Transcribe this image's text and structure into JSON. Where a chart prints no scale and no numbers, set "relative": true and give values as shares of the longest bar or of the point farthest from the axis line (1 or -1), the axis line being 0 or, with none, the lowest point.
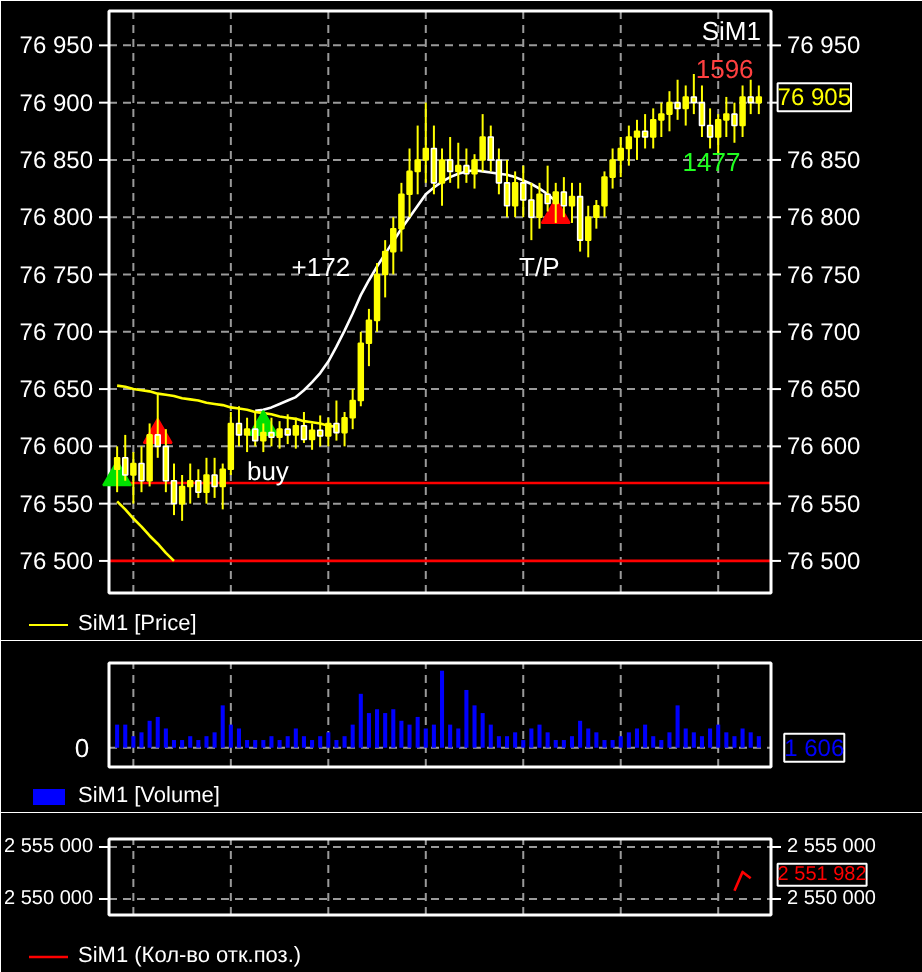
{
  "chart_data": [
    {
      "type": "candlestick",
      "categories": [
        null,
        null,
        null,
        null,
        null,
        null,
        null,
        null,
        null,
        null,
        null,
        null,
        null,
        null,
        null,
        null,
        null,
        null,
        null,
        null,
        null,
        null,
        null,
        null,
        null,
        null,
        null,
        null,
        null,
        null,
        null,
        null,
        null,
        null,
        null,
        null,
        null,
        null,
        null,
        null,
        null,
        null,
        null,
        null,
        null,
        null,
        null,
        null,
        null,
        null,
        null,
        null,
        null,
        null,
        null,
        null,
        null,
        null,
        null,
        null,
        null,
        null,
        null,
        null,
        null,
        null,
        null,
        null,
        null,
        null,
        null,
        null,
        null,
        null,
        null,
        null,
        null,
        null,
        null,
        null
      ],
      "ylim": [
        76472,
        76980
      ],
      "yticks": [
        {
          "value": 76500,
          "label": "76 500"
        },
        {
          "value": 76550,
          "label": "76 550"
        },
        {
          "value": 76600,
          "label": "76 600"
        },
        {
          "value": 76650,
          "label": "76 650"
        },
        {
          "value": 76700,
          "label": "76 700"
        },
        {
          "value": 76750,
          "label": "76 750"
        },
        {
          "value": 76800,
          "label": "76 800"
        },
        {
          "value": 76850,
          "label": "76 850"
        },
        {
          "value": 76900,
          "label": "76 900"
        },
        {
          "value": 76950,
          "label": "76 950"
        }
      ],
      "y2lim": [
        76472,
        76980
      ],
      "y2ticks": [
        {
          "value": 76500,
          "label": "76 500"
        },
        {
          "value": 76550,
          "label": "76 550"
        },
        {
          "value": 76600,
          "label": "76 600"
        },
        {
          "value": 76650,
          "label": "76 650"
        },
        {
          "value": 76700,
          "label": "76 700"
        },
        {
          "value": 76750,
          "label": "76 750"
        },
        {
          "value": 76800,
          "label": "76 800"
        },
        {
          "value": 76850,
          "label": "76 850"
        },
        {
          "value": 76900,
          "label": null
        },
        {
          "value": 76950,
          "label": "76 950"
        }
      ],
      "tick_labels": "y",
      "grid": true,
      "legend": "bottom left",
      "ref_lines": [
        {
          "axis": "y",
          "value": 76500,
          "color": "#ff0000"
        },
        {
          "axis": "y",
          "value": 76568,
          "color": "#ff0000"
        }
      ],
      "series": [
        {
          "name": "SiM1 [Price]",
          "type": "candlestick",
          "color": "#ffff00",
          "ohlc": [
            [
              76580,
              76600,
              76560,
              76590
            ],
            [
              76590,
              76610,
              76570,
              76575
            ],
            [
              76575,
              76595,
              76550,
              76585
            ],
            [
              76585,
              76600,
              76560,
              76570
            ],
            [
              76570,
              76620,
              76565,
              76610
            ],
            [
              76610,
              76645,
              76590,
              76600
            ],
            [
              76600,
              76615,
              76560,
              76570
            ],
            [
              76570,
              76585,
              76540,
              76550
            ],
            [
              76550,
              76575,
              76535,
              76565
            ],
            [
              76565,
              76585,
              76550,
              76570
            ],
            [
              76570,
              76580,
              76555,
              76560
            ],
            [
              76560,
              76590,
              76550,
              76575
            ],
            [
              76575,
              76590,
              76555,
              76565
            ],
            [
              76565,
              76585,
              76545,
              76580
            ],
            [
              76580,
              76630,
              76575,
              76620
            ],
            [
              76620,
              76635,
              76600,
              76610
            ],
            [
              76610,
              76625,
              76595,
              76615
            ],
            [
              76615,
              76630,
              76600,
              76605
            ],
            [
              76605,
              76620,
              76595,
              76612
            ],
            [
              76612,
              76625,
              76600,
              76608
            ],
            [
              76608,
              76622,
              76598,
              76615
            ],
            [
              76615,
              76628,
              76602,
              76610
            ],
            [
              76610,
              76625,
              76598,
              76618
            ],
            [
              76618,
              76630,
              76603,
              76606
            ],
            [
              76606,
              76620,
              76597,
              76614
            ],
            [
              76614,
              76627,
              76600,
              76609
            ],
            [
              76609,
              76625,
              76600,
              76620
            ],
            [
              76620,
              76640,
              76605,
              76612
            ],
            [
              76612,
              76630,
              76600,
              76625
            ],
            [
              76625,
              76650,
              76615,
              76640
            ],
            [
              76640,
              76700,
              76635,
              76690
            ],
            [
              76690,
              76720,
              76670,
              76710
            ],
            [
              76710,
              76760,
              76700,
              76750
            ],
            [
              76750,
              76780,
              76730,
              76770
            ],
            [
              76770,
              76800,
              76750,
              76790
            ],
            [
              76790,
              76830,
              76770,
              76820
            ],
            [
              76820,
              76860,
              76800,
              76840
            ],
            [
              76840,
              76880,
              76820,
              76850
            ],
            [
              76850,
              76900,
              76830,
              76860
            ],
            [
              76860,
              76880,
              76820,
              76830
            ],
            [
              76830,
              76860,
              76810,
              76850
            ],
            [
              76850,
              76870,
              76830,
              76840
            ],
            [
              76840,
              76865,
              76825,
              76845
            ],
            [
              76845,
              76860,
              76830,
              76838
            ],
            [
              76838,
              76855,
              76825,
              76850
            ],
            [
              76850,
              76890,
              76840,
              76870
            ],
            [
              76870,
              76880,
              76840,
              76850
            ],
            [
              76850,
              76860,
              76820,
              76830
            ],
            [
              76830,
              76850,
              76800,
              76810
            ],
            [
              76810,
              76840,
              76800,
              76830
            ],
            [
              76830,
              76845,
              76800,
              76815
            ],
            [
              76815,
              76830,
              76780,
              76800
            ],
            [
              76800,
              76830,
              76790,
              76820
            ],
            [
              76820,
              76845,
              76805,
              76812
            ],
            [
              76812,
              76830,
              76795,
              76822
            ],
            [
              76822,
              76835,
              76800,
              76810
            ],
            [
              76810,
              76830,
              76795,
              76818
            ],
            [
              76818,
              76830,
              76770,
              76780
            ],
            [
              76780,
              76810,
              76765,
              76800
            ],
            [
              76800,
              76815,
              76790,
              76810
            ],
            [
              76810,
              76840,
              76800,
              76835
            ],
            [
              76835,
              76860,
              76825,
              76850
            ],
            [
              76850,
              76870,
              76835,
              76860
            ],
            [
              76860,
              76880,
              76845,
              76870
            ],
            [
              76870,
              76885,
              76850,
              76875
            ],
            [
              76875,
              76890,
              76860,
              76870
            ],
            [
              76870,
              76895,
              76860,
              76885
            ],
            [
              76885,
              76900,
              76870,
              76890
            ],
            [
              76890,
              76910,
              76875,
              76900
            ],
            [
              76900,
              76920,
              76885,
              76895
            ],
            [
              76895,
              76915,
              76880,
              76905
            ],
            [
              76905,
              76925,
              76890,
              76900
            ],
            [
              76900,
              76915,
              76870,
              76880
            ],
            [
              76880,
              76895,
              76860,
              76870
            ],
            [
              76870,
              76890,
              76855,
              76885
            ],
            [
              76885,
              76905,
              76870,
              76890
            ],
            [
              76890,
              76900,
              76865,
              76880
            ],
            [
              76880,
              76915,
              76870,
              76905
            ],
            [
              76905,
              76920,
              76890,
              76900
            ],
            [
              76900,
              76915,
              76890,
              76905
            ]
          ]
        },
        {
          "type": "line",
          "color": "#ffffff",
          "values": [
            null,
            null,
            null,
            null,
            null,
            null,
            null,
            null,
            null,
            null,
            null,
            null,
            null,
            null,
            null,
            null,
            null,
            76631,
            76632,
            76634,
            76637,
            76640,
            76643,
            76649,
            76656,
            76664,
            76674,
            76687,
            76701,
            76716,
            76732,
            76745,
            76757,
            76768,
            76779,
            76790,
            76800,
            76810,
            76820,
            76826,
            76831,
            76835,
            76838,
            76840,
            76841,
            76840,
            76839,
            76838,
            76837,
            76835,
            76832,
            76829,
            76825,
            76820,
            76814,
            null,
            null,
            null,
            null,
            null,
            null,
            null,
            null,
            null,
            null,
            null,
            null,
            null,
            null,
            null,
            null,
            null,
            null,
            null,
            null,
            null,
            null,
            null,
            null,
            null
          ]
        },
        {
          "type": "line",
          "color": "#ffff00",
          "values": [
            76653,
            76652,
            76650,
            76649,
            76648,
            76646,
            76645,
            76644,
            76642,
            76641,
            76640,
            76638,
            76637,
            76636,
            76634,
            76633,
            76632,
            76630,
            76629,
            76628,
            76626,
            76625,
            76624,
            76622,
            76621,
            76620,
            76618,
            76617,
            null,
            null,
            null,
            null,
            null,
            null,
            null,
            null,
            null,
            null,
            null,
            null,
            null,
            null,
            null,
            null,
            null,
            null,
            null,
            null,
            null,
            null,
            null,
            null,
            null,
            null,
            null,
            null,
            null,
            null,
            null,
            null,
            null,
            null,
            null,
            null,
            null,
            null,
            null,
            null,
            null,
            null,
            null,
            null,
            null,
            null,
            null,
            null,
            null,
            null,
            null,
            null
          ]
        },
        {
          "type": "line",
          "color": "#ffff00",
          "values": [
            76552,
            76545,
            76537,
            76530,
            76522,
            76515,
            76507,
            76500,
            null,
            null,
            null,
            null,
            null,
            null,
            null,
            null,
            null,
            null,
            null,
            null,
            null,
            null,
            null,
            null,
            null,
            null,
            null,
            null,
            null,
            null,
            null,
            null,
            null,
            null,
            null,
            null,
            null,
            null,
            null,
            null,
            null,
            null,
            null,
            null,
            null,
            null,
            null,
            null,
            null,
            null,
            null,
            null,
            null,
            null,
            null,
            null,
            null,
            null,
            null,
            null,
            null,
            null,
            null,
            null,
            null,
            null,
            null,
            null,
            null,
            null,
            null,
            null,
            null,
            null,
            null,
            null,
            null,
            null,
            null,
            null
          ]
        },
        {
          "type": "scatter",
          "marker": "triangle",
          "color": "#00e000",
          "values": [
            76573,
            null,
            null,
            null,
            null,
            null,
            null,
            null,
            null,
            null,
            null,
            null,
            null,
            null,
            null,
            null,
            null,
            null,
            76617,
            null,
            null,
            null,
            null,
            null,
            null,
            null,
            null,
            null,
            null,
            null,
            null,
            null,
            null,
            null,
            null,
            null,
            null,
            null,
            null,
            null,
            null,
            null,
            null,
            null,
            null,
            null,
            null,
            null,
            null,
            null,
            null,
            null,
            null,
            null,
            null,
            null,
            null,
            null,
            null,
            null,
            null,
            null,
            null,
            null,
            null,
            null,
            null,
            null,
            null,
            null,
            null,
            null,
            null,
            null,
            null,
            null,
            null,
            null,
            null,
            null
          ]
        },
        {
          "type": "scatter",
          "marker": "triangle",
          "color": "#ff0000",
          "values": [
            null,
            null,
            null,
            null,
            null,
            76610,
            null,
            null,
            null,
            null,
            null,
            null,
            null,
            null,
            null,
            null,
            null,
            null,
            null,
            null,
            null,
            null,
            null,
            null,
            null,
            null,
            null,
            null,
            null,
            null,
            null,
            null,
            null,
            null,
            null,
            null,
            null,
            null,
            null,
            null,
            null,
            null,
            null,
            null,
            null,
            null,
            null,
            null,
            null,
            null,
            null,
            null,
            null,
            null,
            76802,
            null,
            null,
            null,
            null,
            null,
            null,
            null,
            null,
            null,
            null,
            null,
            null,
            null,
            null,
            null,
            null,
            null,
            null,
            null,
            null,
            null,
            null,
            null,
            null,
            null
          ]
        }
      ],
      "annotations": [
        "+172",
        "buy",
        "T/P",
        "1596",
        "1477",
        "SiM1",
        "76 905"
      ]
    },
    {
      "type": "bar",
      "relative": true,
      "categories": [
        null,
        null,
        null,
        null,
        null,
        null,
        null,
        null,
        null,
        null,
        null,
        null,
        null,
        null,
        null,
        null,
        null,
        null,
        null,
        null,
        null,
        null,
        null,
        null,
        null,
        null,
        null,
        null,
        null,
        null,
        null,
        null,
        null,
        null,
        null,
        null,
        null,
        null,
        null,
        null,
        null,
        null,
        null,
        null,
        null,
        null,
        null,
        null,
        null,
        null,
        null,
        null,
        null,
        null,
        null,
        null,
        null,
        null,
        null,
        null,
        null,
        null,
        null,
        null,
        null,
        null,
        null,
        null,
        null,
        null,
        null,
        null,
        null,
        null,
        null,
        null,
        null,
        null,
        null,
        null
      ],
      "tick_labels": false,
      "grid": "x",
      "legend": "bottom left",
      "series": [
        {
          "name": "SiM1 [Volume]",
          "color": "#0000ff",
          "values": [
            0.3,
            0.3,
            0.15,
            0.2,
            0.35,
            0.4,
            0.25,
            0.1,
            0.1,
            0.15,
            0.1,
            0.15,
            0.2,
            0.55,
            0.3,
            0.25,
            0.1,
            0.1,
            0.1,
            0.15,
            0.1,
            0.15,
            0.25,
            0.15,
            0.1,
            0.15,
            0.2,
            0.1,
            0.15,
            0.3,
            0.7,
            0.45,
            0.5,
            0.45,
            0.5,
            0.35,
            0.3,
            0.4,
            0.25,
            0.3,
            1.0,
            0.3,
            0.25,
            0.75,
            0.55,
            0.45,
            0.3,
            0.15,
            0.15,
            0.2,
            0.1,
            0.25,
            0.3,
            0.2,
            0.1,
            0.1,
            0.15,
            0.35,
            0.25,
            0.2,
            0.1,
            0.1,
            0.15,
            0.2,
            0.25,
            0.3,
            0.15,
            0.1,
            0.2,
            0.55,
            0.25,
            0.2,
            0.15,
            0.25,
            0.3,
            0.2,
            0.15,
            0.25,
            0.2,
            0.15
          ]
        }
      ],
      "annotations": [
        "0",
        "1 606"
      ]
    },
    {
      "type": "line",
      "categories": [
        null,
        null,
        null,
        null,
        null,
        null,
        null,
        null,
        null,
        null,
        null,
        null,
        null,
        null,
        null,
        null,
        null,
        null,
        null,
        null,
        null,
        null,
        null,
        null,
        null,
        null,
        null,
        null,
        null,
        null,
        null,
        null,
        null,
        null,
        null,
        null,
        null,
        null,
        null,
        null,
        null,
        null,
        null,
        null,
        null,
        null,
        null,
        null,
        null,
        null,
        null,
        null,
        null,
        null,
        null,
        null,
        null,
        null,
        null,
        null,
        null,
        null,
        null,
        null,
        null,
        null,
        null,
        null,
        null,
        null,
        null,
        null,
        null,
        null,
        null,
        null,
        null,
        null,
        null,
        null
      ],
      "ylim": [
        2548460,
        2555770
      ],
      "yticks": [
        {
          "value": 2550000,
          "label": "2 550 000"
        },
        {
          "value": 2555000,
          "label": "2 555 000"
        }
      ],
      "y2lim": [
        2548460,
        2555770
      ],
      "y2ticks": [
        {
          "value": 2550000,
          "label": "2 550 000"
        },
        {
          "value": 2555000,
          "label": "2 555 000"
        }
      ],
      "tick_labels": "y",
      "grid": true,
      "legend": "bottom left",
      "series": [
        {
          "name": "SiM1 (Кол-во отк.поз.)",
          "color": "#ff0000",
          "values": [
            null,
            null,
            null,
            null,
            null,
            null,
            null,
            null,
            null,
            null,
            null,
            null,
            null,
            null,
            null,
            null,
            null,
            null,
            null,
            null,
            null,
            null,
            null,
            null,
            null,
            null,
            null,
            null,
            null,
            null,
            null,
            null,
            null,
            null,
            null,
            null,
            null,
            null,
            null,
            null,
            null,
            null,
            null,
            null,
            null,
            null,
            null,
            null,
            null,
            null,
            null,
            null,
            null,
            null,
            null,
            null,
            null,
            null,
            null,
            null,
            null,
            null,
            null,
            null,
            null,
            null,
            null,
            null,
            null,
            null,
            null,
            null,
            null,
            null,
            null,
            null,
            2550800,
            2552600,
            2552000,
            null
          ]
        }
      ],
      "annotations": [
        "2 551 982"
      ]
    }
  ]
}
